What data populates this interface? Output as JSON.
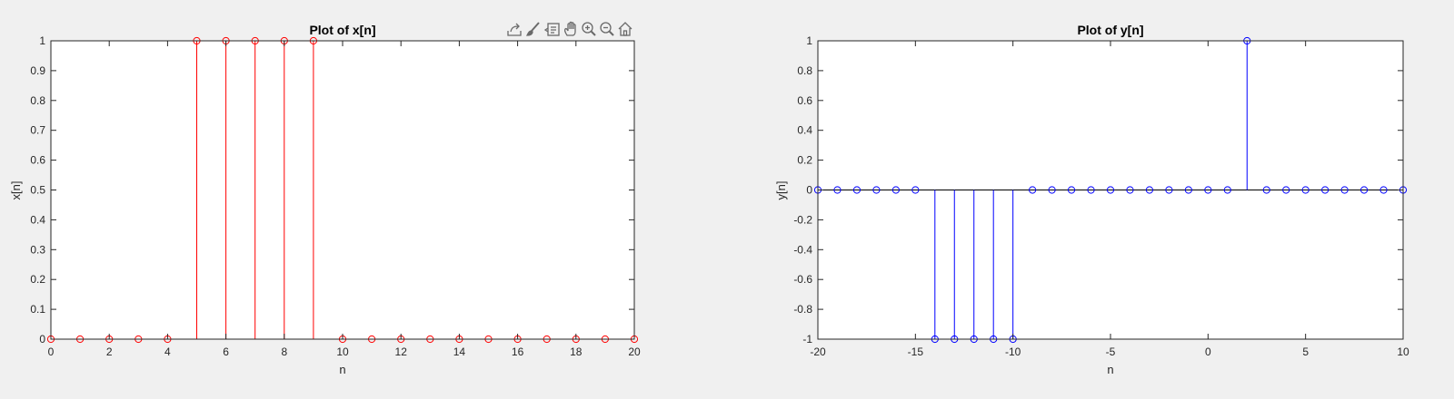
{
  "toolbar": {
    "icons": [
      "export-icon",
      "brush-icon",
      "data-tip-icon",
      "pan-hand-icon",
      "zoom-in-icon",
      "zoom-out-icon",
      "home-icon"
    ]
  },
  "chart_data": [
    {
      "type": "stem",
      "title": "Plot of x[n]",
      "xlabel": "n",
      "ylabel": "x[n]",
      "xlim": [
        0,
        20
      ],
      "ylim": [
        0,
        1
      ],
      "xticks": [
        0,
        2,
        4,
        6,
        8,
        10,
        12,
        14,
        16,
        18,
        20
      ],
      "yticks": [
        0,
        0.1,
        0.2,
        0.3,
        0.4,
        0.5,
        0.6,
        0.7,
        0.8,
        0.9,
        1
      ],
      "xtick_labels": [
        "0",
        "2",
        "4",
        "6",
        "8",
        "10",
        "12",
        "14",
        "16",
        "18",
        "20"
      ],
      "ytick_labels": [
        "0",
        "0.1",
        "0.2",
        "0.3",
        "0.4",
        "0.5",
        "0.6",
        "0.7",
        "0.8",
        "0.9",
        "1"
      ],
      "color": "#ff0000",
      "x": [
        0,
        1,
        2,
        3,
        4,
        5,
        6,
        7,
        8,
        9,
        10,
        11,
        12,
        13,
        14,
        15,
        16,
        17,
        18,
        19,
        20
      ],
      "y": [
        0,
        0,
        0,
        0,
        0,
        1,
        1,
        1,
        1,
        1,
        0,
        0,
        0,
        0,
        0,
        0,
        0,
        0,
        0,
        0,
        0
      ]
    },
    {
      "type": "stem",
      "title": "Plot of y[n]",
      "xlabel": "n",
      "ylabel": "y[n]",
      "xlim": [
        -20,
        10
      ],
      "ylim": [
        -1,
        1
      ],
      "xticks": [
        -20,
        -15,
        -10,
        -5,
        0,
        5,
        10
      ],
      "yticks": [
        -1,
        -0.8,
        -0.6,
        -0.4,
        -0.2,
        0,
        0.2,
        0.4,
        0.6,
        0.8,
        1
      ],
      "xtick_labels": [
        "-20",
        "-15",
        "-10",
        "-5",
        "0",
        "5",
        "10"
      ],
      "ytick_labels": [
        "-1",
        "-0.8",
        "-0.6",
        "-0.4",
        "-0.2",
        "0",
        "0.2",
        "0.4",
        "0.6",
        "0.8",
        "1"
      ],
      "color": "#0000ff",
      "x": [
        -20,
        -19,
        -18,
        -17,
        -16,
        -15,
        -14,
        -13,
        -12,
        -11,
        -10,
        -9,
        -8,
        -7,
        -6,
        -5,
        -4,
        -3,
        -2,
        -1,
        0,
        1,
        2,
        3,
        4,
        5,
        6,
        7,
        8,
        9,
        10
      ],
      "y": [
        0,
        0,
        0,
        0,
        0,
        0,
        -1,
        -1,
        -1,
        -1,
        -1,
        0,
        0,
        0,
        0,
        0,
        0,
        0,
        0,
        0,
        0,
        0,
        1,
        0,
        0,
        0,
        0,
        0,
        0,
        0,
        0
      ]
    }
  ]
}
